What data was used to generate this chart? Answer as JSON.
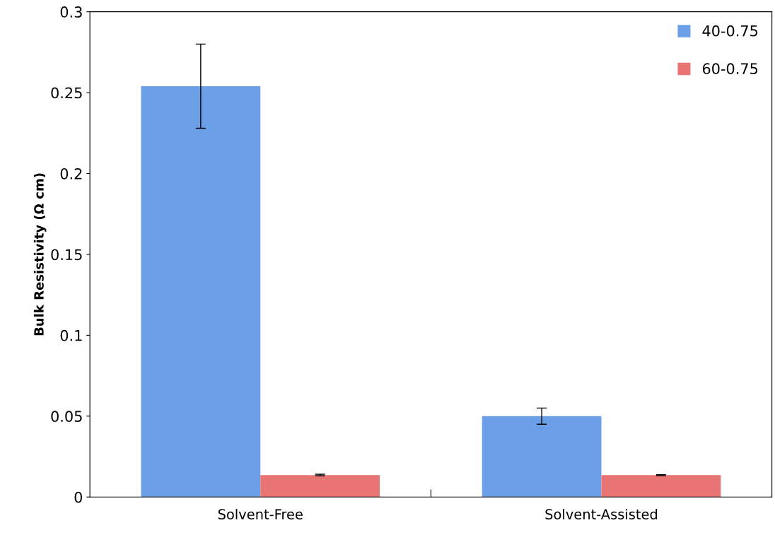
{
  "chart_data": {
    "type": "bar",
    "ylabel": "Bulk Resistivity (Ω cm)",
    "categories": [
      "Solvent-Free",
      "Solvent-Assisted"
    ],
    "series": [
      {
        "name": "40-0.75",
        "color": "#6b9fe8",
        "values": [
          0.254,
          0.05
        ],
        "errors": [
          0.026,
          0.005
        ]
      },
      {
        "name": "60-0.75",
        "color": "#e87474",
        "values": [
          0.0136,
          0.0135
        ],
        "errors": [
          0.0005,
          0.0003
        ]
      }
    ],
    "ylim": [
      0,
      0.3
    ],
    "yticks": [
      {
        "value": 0,
        "label": "0"
      },
      0.05,
      {
        "value": 0.1,
        "label": "0.1"
      },
      0.15,
      {
        "value": 0.2,
        "label": "0.2"
      },
      0.25,
      {
        "value": 0.3,
        "label": "0.3"
      }
    ],
    "grid": false,
    "legend": "top right"
  }
}
